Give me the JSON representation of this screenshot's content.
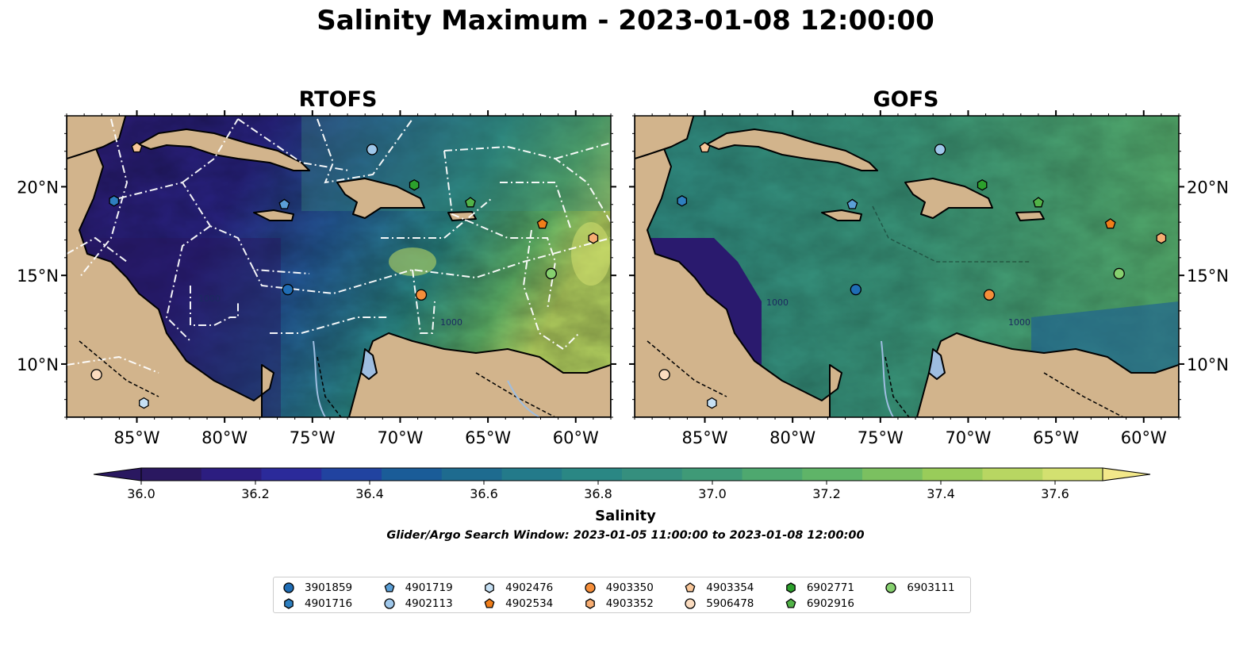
{
  "title": "Salinity Maximum - 2023-01-08 12:00:00",
  "panels": [
    {
      "title": "RTOFS"
    },
    {
      "title": "GOFS"
    }
  ],
  "axes": {
    "lat_labels": [
      "20°N",
      "15°N",
      "10°N"
    ],
    "lon_labels": [
      "85°W",
      "80°W",
      "75°W",
      "70°W",
      "65°W",
      "60°W"
    ],
    "extent": {
      "lon": [
        -89,
        -58
      ],
      "lat": [
        7,
        24
      ]
    }
  },
  "colorbar": {
    "label": "Salinity",
    "ticks": [
      "36.0",
      "36.2",
      "36.4",
      "36.6",
      "36.8",
      "37.0",
      "37.2",
      "37.4",
      "37.6"
    ],
    "range": [
      35.9,
      37.6
    ],
    "colors": [
      "#2a1860",
      "#2c1d80",
      "#2b2a9a",
      "#2143a0",
      "#1a5c98",
      "#1e6b8f",
      "#237a8a",
      "#2a8784",
      "#358f7e",
      "#3f9a77",
      "#4ea86f",
      "#5fb468",
      "#7bc060",
      "#99cc5a",
      "#b8d662",
      "#d3e070",
      "#f2e88a"
    ]
  },
  "search_window": "Glider/Argo Search Window: 2023-01-05 11:00:00 to 2023-01-08 12:00:00",
  "legend": [
    {
      "id": "3901859",
      "marker": "circle",
      "color": "#1f6db5"
    },
    {
      "id": "4901716",
      "marker": "hexagon",
      "color": "#2e7fc0"
    },
    {
      "id": "4901719",
      "marker": "pentagon",
      "color": "#5b9fd6"
    },
    {
      "id": "4902113",
      "marker": "circle",
      "color": "#9fc7ea"
    },
    {
      "id": "4902476",
      "marker": "hexagon",
      "color": "#c6e0f4"
    },
    {
      "id": "4902534",
      "marker": "pentagon",
      "color": "#f07e1a"
    },
    {
      "id": "4903350",
      "marker": "circle",
      "color": "#f58e3a"
    },
    {
      "id": "4903352",
      "marker": "hexagon",
      "color": "#f7ad72"
    },
    {
      "id": "4903354",
      "marker": "pentagon",
      "color": "#f9c79a"
    },
    {
      "id": "5906478",
      "marker": "circle",
      "color": "#fbdcc0"
    },
    {
      "id": "6902771",
      "marker": "hexagon",
      "color": "#2ca02c"
    },
    {
      "id": "6902916",
      "marker": "pentagon",
      "color": "#52b348"
    },
    {
      "id": "6903111",
      "marker": "circle",
      "color": "#86d06f"
    }
  ],
  "floats": [
    {
      "id": "4903354",
      "lon": -85.0,
      "lat": 22.2
    },
    {
      "id": "4901716",
      "lon": -86.3,
      "lat": 19.2
    },
    {
      "id": "4901719",
      "lon": -76.6,
      "lat": 19.0
    },
    {
      "id": "4902113",
      "lon": -71.6,
      "lat": 22.1
    },
    {
      "id": "6902771",
      "lon": -69.2,
      "lat": 20.1
    },
    {
      "id": "6902916",
      "lon": -66.0,
      "lat": 19.1
    },
    {
      "id": "4902534",
      "lon": -61.9,
      "lat": 17.9
    },
    {
      "id": "4903352",
      "lon": -59.0,
      "lat": 17.1
    },
    {
      "id": "6903111",
      "lon": -61.4,
      "lat": 15.1
    },
    {
      "id": "4903350",
      "lon": -68.8,
      "lat": 13.9
    },
    {
      "id": "3901859",
      "lon": -76.4,
      "lat": 14.2
    },
    {
      "id": "5906478",
      "lon": -87.3,
      "lat": 9.4
    },
    {
      "id": "4902476",
      "lon": -84.6,
      "lat": 7.8
    }
  ],
  "contour_labels": [
    "1000",
    "1000"
  ]
}
